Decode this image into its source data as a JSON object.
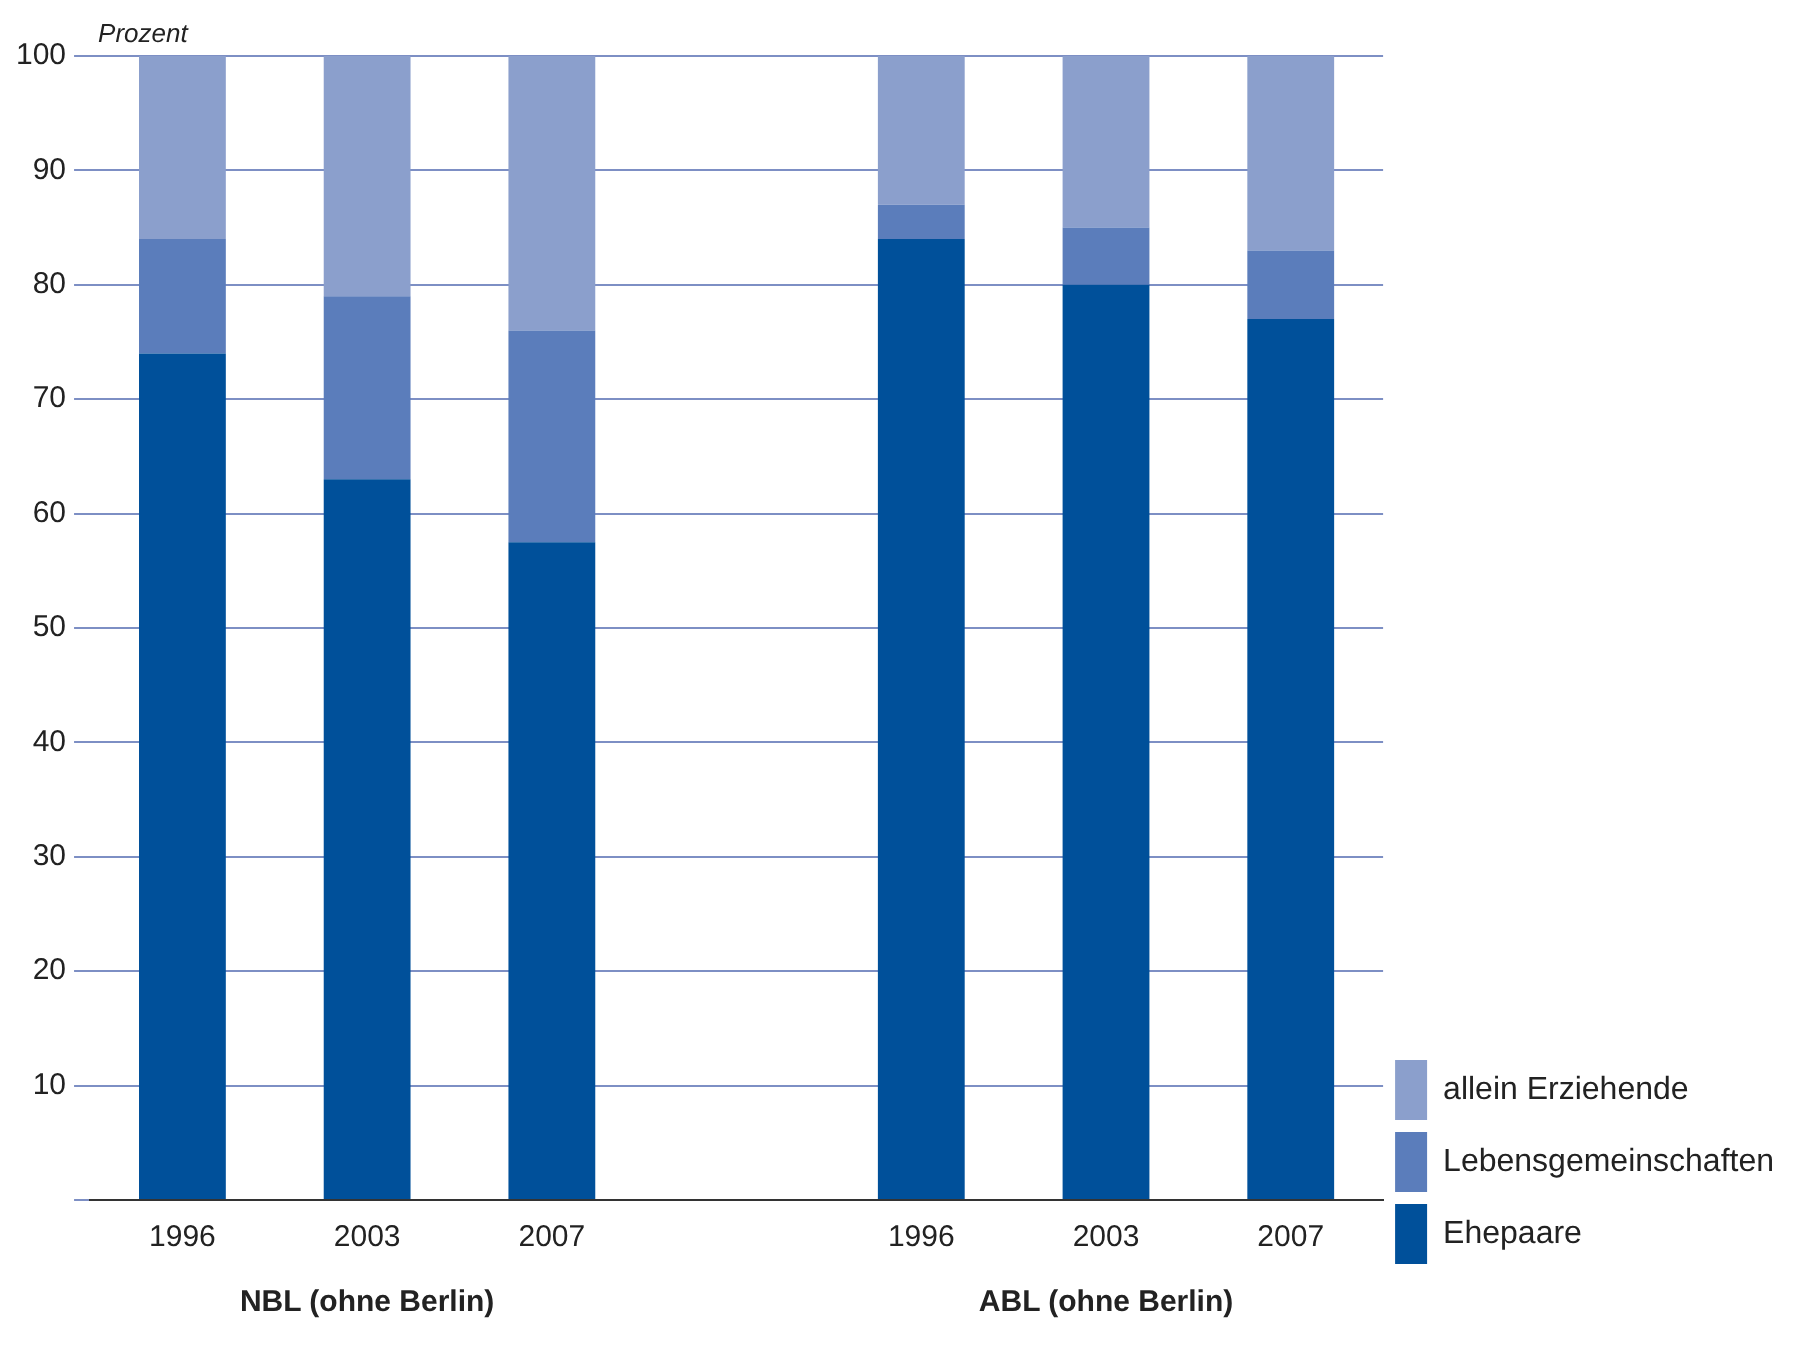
{
  "chart_data": {
    "type": "bar",
    "stacked": true,
    "ylabel": "Prozent",
    "categories": [
      "1996",
      "2003",
      "2007",
      null,
      "1996",
      "2003",
      "2007"
    ],
    "series": [
      {
        "name": "Ehepaare",
        "color": "#00509a",
        "values": [
          74,
          63,
          57.5,
          null,
          84,
          80,
          77
        ]
      },
      {
        "name": "Lebensgemeinschaften",
        "color": "#5b7dbb",
        "values": [
          10,
          16,
          18.5,
          null,
          3,
          5,
          6
        ]
      },
      {
        "name": "allein Erziehende",
        "color": "#8b9fcc",
        "values": [
          16,
          21,
          24,
          null,
          13,
          15,
          17
        ]
      }
    ],
    "ylim": [
      0,
      100
    ],
    "yticks": [
      {
        "value": 0,
        "label": null
      },
      10,
      20,
      30,
      40,
      50,
      60,
      70,
      80,
      90,
      100
    ],
    "grid": "y",
    "legend": "right",
    "annotations": [
      "NBL (ohne Berlin)",
      "ABL (ohne Berlin)"
    ]
  }
}
